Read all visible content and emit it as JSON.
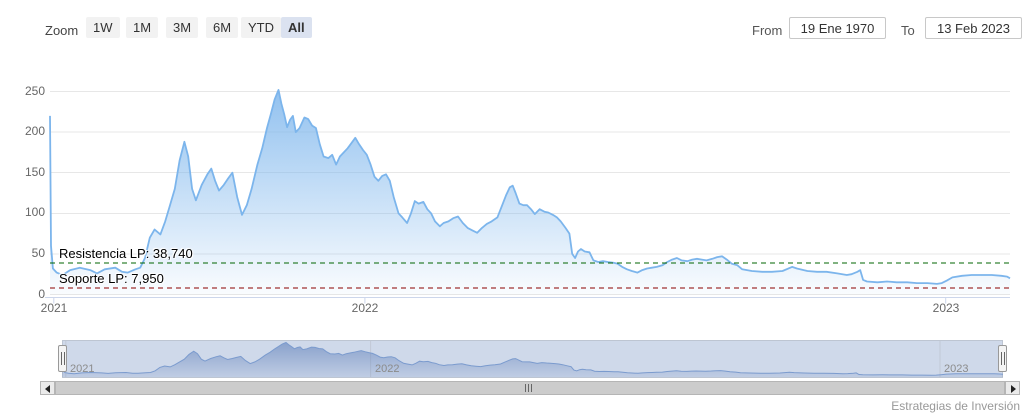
{
  "toolbar": {
    "zoom_label": "Zoom",
    "buttons": [
      {
        "label": "1W",
        "selected": false
      },
      {
        "label": "1M",
        "selected": false
      },
      {
        "label": "3M",
        "selected": false
      },
      {
        "label": "6M",
        "selected": false
      },
      {
        "label": "YTD",
        "selected": false
      },
      {
        "label": "All",
        "selected": true
      }
    ],
    "range_inputs": {
      "from_label": "From",
      "from_value": "19 Ene 1970",
      "to_label": "To",
      "to_value": "13 Feb 2023"
    }
  },
  "chart_data": {
    "type": "area",
    "title": "",
    "legend": false,
    "grid": true,
    "y_axis": {
      "tick_labels": [
        "0",
        "50",
        "100",
        "150",
        "200",
        "250"
      ],
      "tick_values": [
        0,
        50,
        100,
        150,
        200,
        250
      ],
      "min": 0,
      "max": 250
    },
    "x_axis": {
      "ticks": [
        {
          "label": "2021",
          "f": 0.004
        },
        {
          "label": "2022",
          "f": 0.328
        },
        {
          "label": "2023",
          "f": 0.933
        }
      ]
    },
    "plot_lines": [
      {
        "label": "Resistencia LP: 38,740",
        "axis_value": 38.74,
        "color": "#006400",
        "style": "dashed"
      },
      {
        "label": "Soporte LP: 7,950",
        "axis_value": 7.95,
        "color": "#8b0000",
        "style": "dashed"
      }
    ],
    "series": [
      {
        "name": "price",
        "color": "#7cb5ec",
        "points": [
          [
            0,
            220
          ],
          [
            0.001,
            60
          ],
          [
            0.003,
            32
          ],
          [
            0.007,
            27
          ],
          [
            0.013,
            24
          ],
          [
            0.021,
            30
          ],
          [
            0.031,
            33
          ],
          [
            0.042,
            30
          ],
          [
            0.049,
            26
          ],
          [
            0.057,
            31
          ],
          [
            0.068,
            33
          ],
          [
            0.075,
            28
          ],
          [
            0.081,
            27
          ],
          [
            0.089,
            31
          ],
          [
            0.094,
            33
          ],
          [
            0.099,
            45
          ],
          [
            0.104,
            70
          ],
          [
            0.109,
            80
          ],
          [
            0.115,
            74
          ],
          [
            0.12,
            90
          ],
          [
            0.125,
            110
          ],
          [
            0.13,
            130
          ],
          [
            0.135,
            165
          ],
          [
            0.14,
            188
          ],
          [
            0.144,
            170
          ],
          [
            0.148,
            130
          ],
          [
            0.152,
            116
          ],
          [
            0.158,
            135
          ],
          [
            0.164,
            148
          ],
          [
            0.168,
            155
          ],
          [
            0.172,
            140
          ],
          [
            0.176,
            128
          ],
          [
            0.181,
            135
          ],
          [
            0.185,
            142
          ],
          [
            0.19,
            150
          ],
          [
            0.195,
            120
          ],
          [
            0.2,
            98
          ],
          [
            0.205,
            110
          ],
          [
            0.21,
            130
          ],
          [
            0.216,
            160
          ],
          [
            0.221,
            180
          ],
          [
            0.226,
            205
          ],
          [
            0.23,
            222
          ],
          [
            0.234,
            240
          ],
          [
            0.238,
            252
          ],
          [
            0.241,
            235
          ],
          [
            0.244,
            222
          ],
          [
            0.247,
            206
          ],
          [
            0.25,
            215
          ],
          [
            0.253,
            220
          ],
          [
            0.256,
            200
          ],
          [
            0.26,
            205
          ],
          [
            0.265,
            218
          ],
          [
            0.269,
            216
          ],
          [
            0.273,
            208
          ],
          [
            0.277,
            205
          ],
          [
            0.281,
            185
          ],
          [
            0.285,
            170
          ],
          [
            0.29,
            168
          ],
          [
            0.294,
            172
          ],
          [
            0.298,
            160
          ],
          [
            0.302,
            170
          ],
          [
            0.306,
            175
          ],
          [
            0.31,
            180
          ],
          [
            0.315,
            188
          ],
          [
            0.318,
            193
          ],
          [
            0.322,
            185
          ],
          [
            0.326,
            178
          ],
          [
            0.33,
            172
          ],
          [
            0.334,
            160
          ],
          [
            0.338,
            145
          ],
          [
            0.342,
            140
          ],
          [
            0.346,
            146
          ],
          [
            0.35,
            148
          ],
          [
            0.354,
            140
          ],
          [
            0.358,
            120
          ],
          [
            0.363,
            100
          ],
          [
            0.367,
            95
          ],
          [
            0.372,
            88
          ],
          [
            0.376,
            100
          ],
          [
            0.38,
            115
          ],
          [
            0.384,
            112
          ],
          [
            0.389,
            114
          ],
          [
            0.393,
            105
          ],
          [
            0.397,
            100
          ],
          [
            0.401,
            90
          ],
          [
            0.406,
            84
          ],
          [
            0.41,
            88
          ],
          [
            0.415,
            90
          ],
          [
            0.42,
            94
          ],
          [
            0.425,
            96
          ],
          [
            0.43,
            88
          ],
          [
            0.435,
            82
          ],
          [
            0.44,
            79
          ],
          [
            0.445,
            76
          ],
          [
            0.45,
            82
          ],
          [
            0.455,
            87
          ],
          [
            0.46,
            90
          ],
          [
            0.466,
            95
          ],
          [
            0.471,
            110
          ],
          [
            0.475,
            122
          ],
          [
            0.479,
            132
          ],
          [
            0.482,
            134
          ],
          [
            0.485,
            125
          ],
          [
            0.489,
            112
          ],
          [
            0.493,
            110
          ],
          [
            0.497,
            110
          ],
          [
            0.501,
            105
          ],
          [
            0.505,
            99
          ],
          [
            0.51,
            105
          ],
          [
            0.515,
            102
          ],
          [
            0.519,
            101
          ],
          [
            0.524,
            98
          ],
          [
            0.528,
            95
          ],
          [
            0.532,
            90
          ],
          [
            0.537,
            82
          ],
          [
            0.541,
            75
          ],
          [
            0.544,
            50
          ],
          [
            0.547,
            45
          ],
          [
            0.55,
            53
          ],
          [
            0.553,
            56
          ],
          [
            0.557,
            53
          ],
          [
            0.562,
            52
          ],
          [
            0.566,
            42
          ],
          [
            0.571,
            40
          ],
          [
            0.576,
            41
          ],
          [
            0.581,
            40
          ],
          [
            0.587,
            39
          ],
          [
            0.591,
            38
          ],
          [
            0.596,
            34
          ],
          [
            0.601,
            31
          ],
          [
            0.606,
            29
          ],
          [
            0.612,
            27
          ],
          [
            0.617,
            30
          ],
          [
            0.622,
            32
          ],
          [
            0.627,
            33
          ],
          [
            0.632,
            34
          ],
          [
            0.638,
            36
          ],
          [
            0.643,
            40
          ],
          [
            0.648,
            43
          ],
          [
            0.653,
            45
          ],
          [
            0.658,
            42
          ],
          [
            0.664,
            41
          ],
          [
            0.669,
            43
          ],
          [
            0.674,
            44
          ],
          [
            0.679,
            43
          ],
          [
            0.684,
            42
          ],
          [
            0.69,
            44
          ],
          [
            0.695,
            46
          ],
          [
            0.7,
            47
          ],
          [
            0.705,
            43
          ],
          [
            0.71,
            38
          ],
          [
            0.716,
            36
          ],
          [
            0.721,
            31
          ],
          [
            0.731,
            29
          ],
          [
            0.742,
            28
          ],
          [
            0.752,
            28
          ],
          [
            0.763,
            29
          ],
          [
            0.773,
            34
          ],
          [
            0.778,
            32
          ],
          [
            0.789,
            29
          ],
          [
            0.799,
            28
          ],
          [
            0.809,
            28
          ],
          [
            0.82,
            26
          ],
          [
            0.83,
            24
          ],
          [
            0.835,
            25
          ],
          [
            0.841,
            28
          ],
          [
            0.844,
            30
          ],
          [
            0.847,
            18
          ],
          [
            0.851,
            16
          ],
          [
            0.862,
            15
          ],
          [
            0.872,
            16
          ],
          [
            0.882,
            15
          ],
          [
            0.893,
            15
          ],
          [
            0.903,
            14
          ],
          [
            0.914,
            14
          ],
          [
            0.924,
            13
          ],
          [
            0.929,
            14
          ],
          [
            0.934,
            17
          ],
          [
            0.94,
            21
          ],
          [
            0.95,
            23
          ],
          [
            0.96,
            24
          ],
          [
            0.971,
            24
          ],
          [
            0.981,
            24
          ],
          [
            0.991,
            23
          ],
          [
            0.997,
            22
          ],
          [
            1,
            20
          ]
        ]
      }
    ]
  },
  "navigator": {
    "x_labels": [
      {
        "label": "2021",
        "f": 0.004
      },
      {
        "label": "2022",
        "f": 0.328
      },
      {
        "label": "2023",
        "f": 0.933
      }
    ]
  },
  "scrollbar": {
    "left_arrow_icon": "left-arrow",
    "right_arrow_icon": "right-arrow",
    "grip_icon": "grip"
  },
  "watermark": "Estrategias de Inversión",
  "colors": {
    "series_line": "#7cb5ec",
    "area_top": "rgba(124,181,236,0.85)",
    "area_bottom": "rgba(124,181,236,0.04)",
    "grid": "#e7e7e7",
    "axis_line": "#ccd6eb",
    "label_gray": "#666666",
    "button_bg": "#f2f2f2",
    "selected_button_bg": "#dbe2f0",
    "resistance": "#006400",
    "support": "#8b0000",
    "navigator_mask": "#cfd9ea",
    "nav_line": "#7b9bce",
    "nav_area_top": "rgba(88,122,183,0.6)",
    "nav_area_bottom": "rgba(88,122,183,0.12)",
    "nav_gridline": "#c2c9d6"
  }
}
